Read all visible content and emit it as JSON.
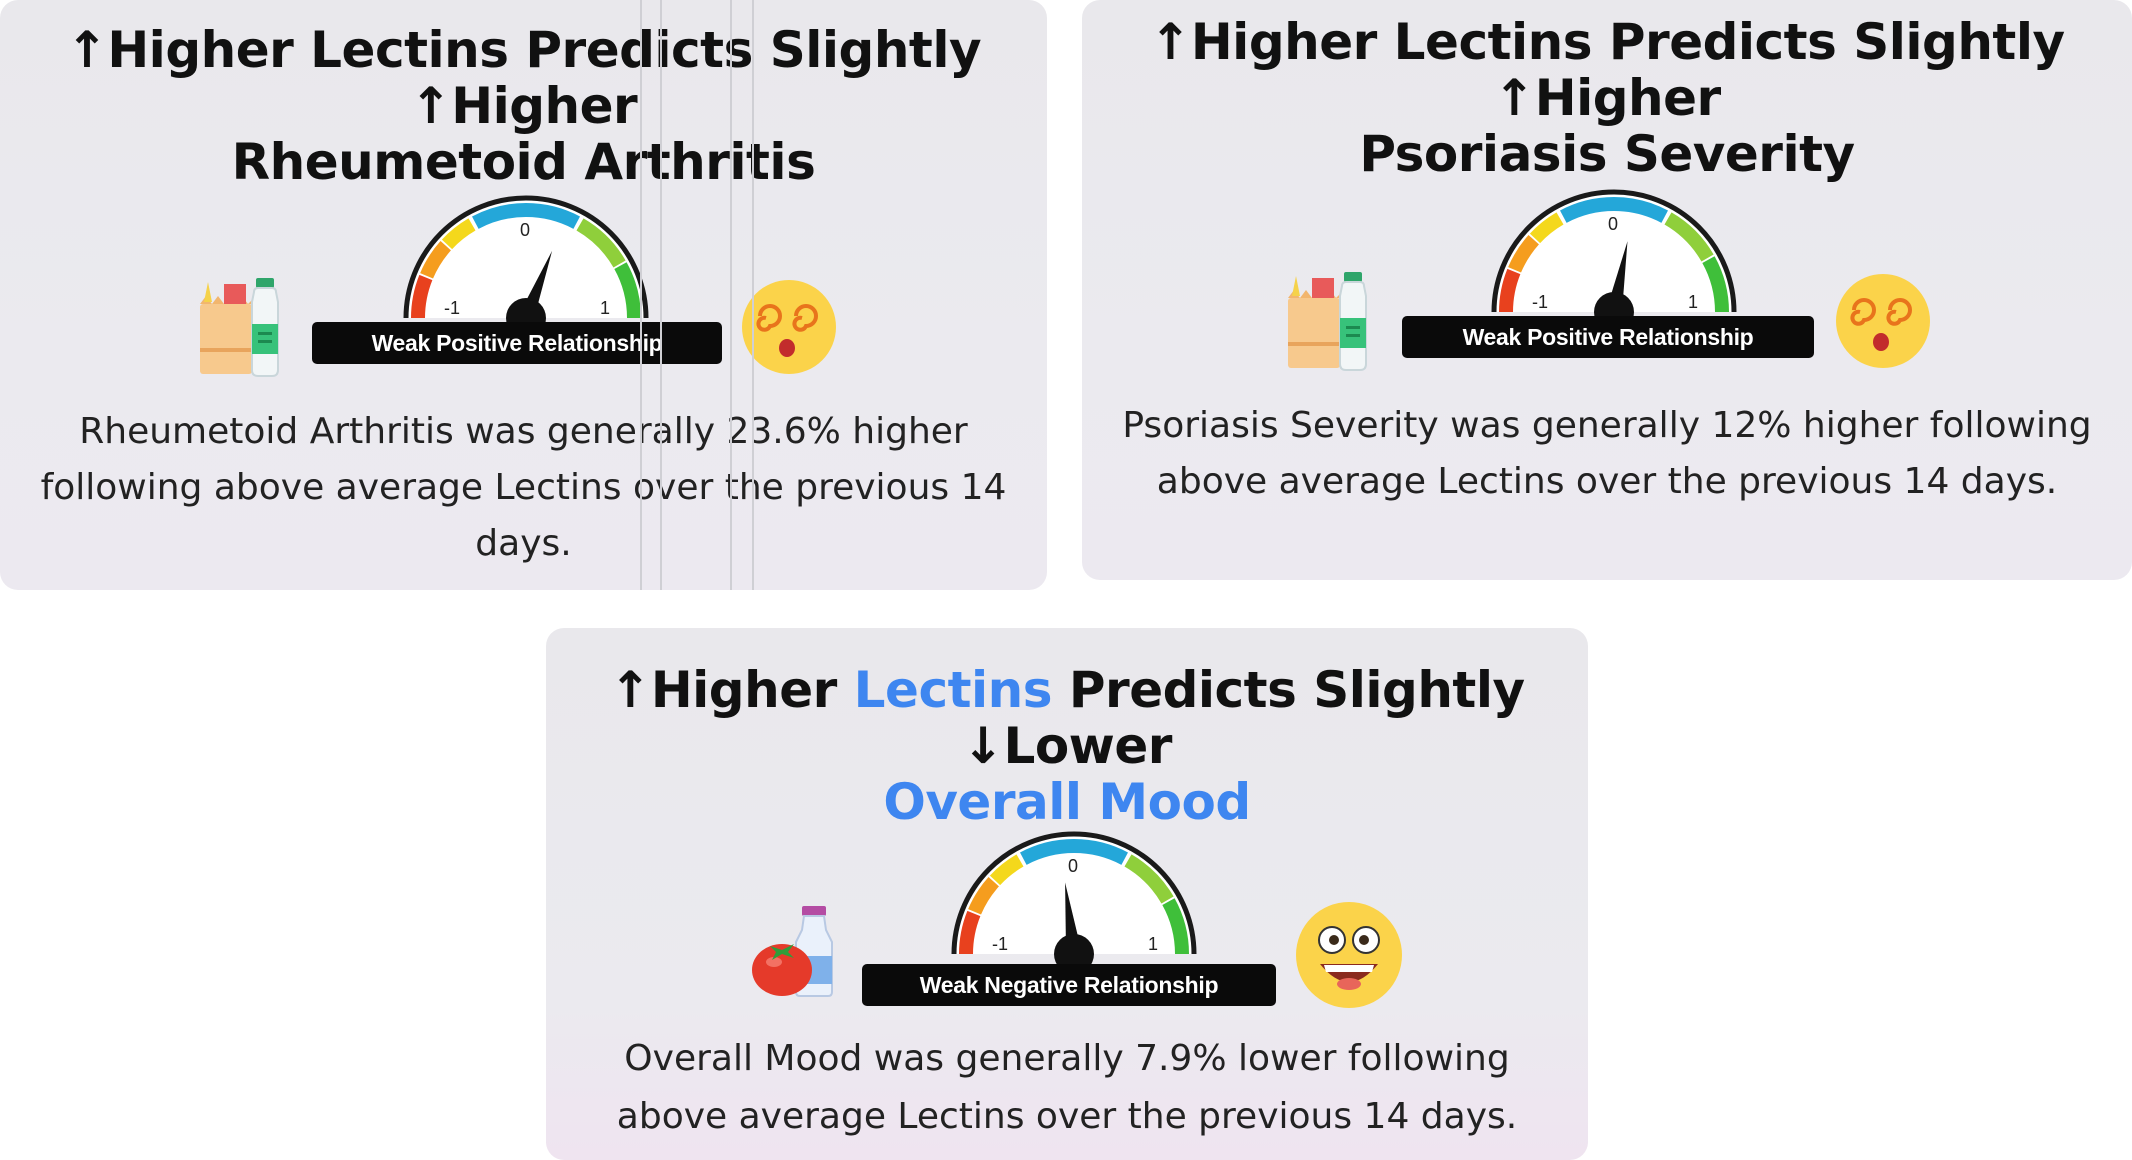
{
  "cards": [
    {
      "title_line1": "↑Higher Lectins Predicts Slightly ↑Higher",
      "title_line2": "Rheumetoid Arthritis",
      "gauge_label": "Weak Positive Relationship",
      "tick_min": "-1",
      "tick_zero": "0",
      "tick_max": "1",
      "needle_value": 0.236,
      "description": "Rheumetoid Arthritis was generally 23.6% higher following above average Lectins over the previous 14 days.",
      "left_icon": "grocery-bag-bottle-icon",
      "right_icon": "dizzy-face-icon"
    },
    {
      "title_line1": "↑Higher Lectins Predicts Slightly ↑Higher",
      "title_line2": "Psoriasis Severity",
      "gauge_label": "Weak Positive Relationship",
      "tick_min": "-1",
      "tick_zero": "0",
      "tick_max": "1",
      "needle_value": 0.12,
      "description": "Psoriasis Severity was generally 12% higher following above average Lectins over the previous 14 days.",
      "left_icon": "grocery-bag-bottle-icon",
      "right_icon": "dizzy-face-icon"
    },
    {
      "title_part1": "↑Higher ",
      "title_part2": "Lectins",
      "title_part3": " Predicts Slightly ↓Lower",
      "title_line2": "Overall Mood",
      "gauge_label": "Weak Negative Relationship",
      "tick_min": "-1",
      "tick_zero": "0",
      "tick_max": "1",
      "needle_value": -0.079,
      "description": "Overall Mood was generally 7.9% lower following above average Lectins over the previous 14 days.",
      "left_icon": "tomato-milk-icon",
      "right_icon": "grinning-face-icon",
      "highlight_color": "#3e86f0"
    }
  ],
  "gauge_colors": [
    "#e8411e",
    "#f59d1e",
    "#f4d81c",
    "#24a7d9",
    "#8fcf3b",
    "#3fbf3a"
  ]
}
